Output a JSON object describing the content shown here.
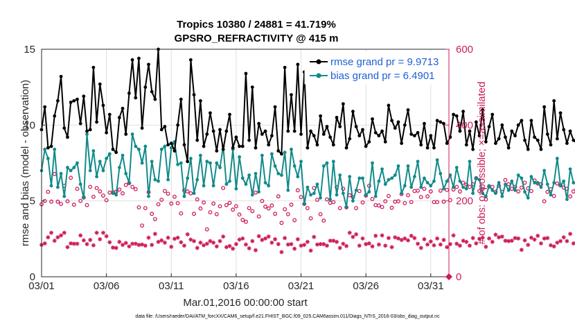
{
  "chart_data": {
    "type": "line",
    "title": "Tropics 10380 / 24881 = 41.719%",
    "subtitle": "GPSRO_REFRACTIVITY @ 415 m",
    "xlabel": "Mar.01,2016 00:00:00 start",
    "ylabel": "rmse and bias (model - observation)",
    "ylabel_right": "# of obs: o=possible; ×=assimilated",
    "footer": "data file: /Users/raeder/DAI/ATM_forcXX/CAM6_setup/f.e21.FHIST_BGC.f09_025.CAM6assim.011/Diags_NTrS_2016-03/obs_diag_output.nc",
    "xlim": [
      0,
      31.4
    ],
    "ylim": [
      0,
      15
    ],
    "ylim_right": [
      0,
      600
    ],
    "x_ticks": [
      0,
      5,
      10,
      15,
      20,
      25,
      30
    ],
    "x_tick_labels": [
      "03/01",
      "03/06",
      "03/11",
      "03/16",
      "03/21",
      "03/26",
      "03/31"
    ],
    "y_ticks": [
      0,
      5,
      10,
      15
    ],
    "y_tick_labels": [
      "0",
      "5",
      "10",
      "15"
    ],
    "y_ticks_right": [
      0,
      200,
      400,
      600
    ],
    "y_tick_labels_right": [
      "0",
      "200",
      "400",
      "600"
    ],
    "grid": true,
    "x_step_days": 0.25,
    "series": [
      {
        "name": "rmse grand pr = 9.9713",
        "color": "#000000",
        "axis": "left",
        "values": [
          9.7,
          11.2,
          8.5,
          8.6,
          10.6,
          11.6,
          13.2,
          9.8,
          9.2,
          11.5,
          11.6,
          11.7,
          10.1,
          11.9,
          9.6,
          9.7,
          13.8,
          10.2,
          12.7,
          11.3,
          9.5,
          10.7,
          8.4,
          8.2,
          10.5,
          11.1,
          9.4,
          12.1,
          14.3,
          11.8,
          14.4,
          9.8,
          12.5,
          14.0,
          12.2,
          11.7,
          15.0,
          9.7,
          9.9,
          8.7,
          8.8,
          8.3,
          10.0,
          11.7,
          8.7,
          7.6,
          14.3,
          12.0,
          9.0,
          11.6,
          8.6,
          9.4,
          10.8,
          9.6,
          8.3,
          9.7,
          8.4,
          9.6,
          10.7,
          8.5,
          9.2,
          8.6,
          8.6,
          13.4,
          9.0,
          12.5,
          8.5,
          10.1,
          9.4,
          9.6,
          8.7,
          9.3,
          11.2,
          8.3,
          8.1,
          13.8,
          9.6,
          12.0,
          9.6,
          14.0,
          9.4,
          13.5,
          8.5,
          9.6,
          9.3,
          8.7,
          10.6,
          9.4,
          9.9,
          9.2,
          8.7,
          10.5,
          9.9,
          11.4,
          8.5,
          9.1,
          10.9,
          9.9,
          9.3,
          9.7,
          8.6,
          8.9,
          10.4,
          9.5,
          9.3,
          9.6,
          8.9,
          11.3,
          10.3,
          9.8,
          10.2,
          8.8,
          10.0,
          11.0,
          9.4,
          9.3,
          9.5,
          8.7,
          10.1,
          8.5,
          9.3,
          8.5,
          10.3,
          10.2,
          10.1,
          8.8,
          9.2,
          10.7,
          10.6,
          9.6,
          10.9,
          8.7,
          9.6,
          8.4,
          10.2,
          9.3,
          11.0,
          8.9,
          9.9,
          10.7,
          8.8,
          9.1,
          10.0,
          9.2,
          8.5,
          9.6,
          9.3,
          10.0,
          10.3,
          9.0,
          8.4,
          10.3,
          9.2,
          9.0,
          8.4,
          11.2,
          9.4,
          8.7,
          11.6,
          9.1,
          10.8,
          9.7,
          8.8,
          9.6,
          9.0,
          8.8,
          8.8,
          8.8,
          10.6,
          8.5,
          10.1,
          9.2,
          8.7,
          10.7,
          9.0,
          8.8,
          10.4,
          8.5,
          9.5,
          9.8,
          9.0,
          8.6,
          11.4,
          11.0,
          8.4,
          10.7,
          9.4,
          10.0,
          10.2,
          10.7,
          8.3
        ]
      },
      {
        "name": "bias grand pr = 6.4901",
        "color": "#128a8a",
        "axis": "left",
        "values": [
          7.0,
          8.4,
          7.8,
          6.0,
          8.4,
          5.9,
          6.8,
          5.3,
          7.2,
          7.0,
          7.2,
          7.5,
          6.1,
          5.2,
          9.4,
          7.0,
          8.3,
          6.6,
          7.6,
          7.0,
          7.8,
          8.1,
          5.5,
          5.4,
          7.2,
          8.0,
          6.8,
          6.2,
          9.4,
          8.6,
          8.4,
          7.5,
          8.6,
          5.3,
          7.6,
          6.4,
          6.3,
          8.4,
          8.6,
          6.4,
          8.5,
          8.9,
          7.4,
          7.5,
          5.3,
          6.5,
          7.8,
          5.5,
          6.4,
          8.0,
          6.0,
          7.6,
          7.5,
          6.0,
          7.5,
          7.2,
          8.6,
          6.1,
          6.3,
          8.4,
          5.8,
          7.9,
          6.5,
          6.1,
          6.7,
          5.4,
          6.8,
          5.6,
          8.0,
          6.2,
          6.0,
          8.1,
          7.3,
          6.8,
          6.7,
          8.2,
          5.7,
          8.4,
          7.3,
          6.6,
          7.6,
          4.8,
          5.9,
          5.4,
          5.5,
          6.1,
          5.2,
          7.3,
          7.5,
          5.1,
          7.6,
          5.4,
          6.7,
          5.5,
          4.6,
          6.6,
          5.0,
          5.7,
          6.5,
          6.5,
          5.4,
          5.6,
          7.5,
          5.3,
          6.3,
          7.1,
          6.1,
          6.4,
          6.5,
          6.7,
          7.3,
          5.5,
          6.0,
          7.3,
          5.9,
          6.6,
          7.6,
          5.9,
          6.5,
          6.2,
          6.0,
          6.3,
          7.7,
          6.8,
          5.8,
          6.3,
          6.7,
          5.9,
          7.2,
          6.3,
          5.9,
          5.8,
          7.6,
          5.5,
          6.5,
          6.4,
          5.5,
          5.3,
          6.0,
          5.7,
          5.5,
          6.2,
          5.3,
          6.1,
          5.7,
          6.3,
          5.7,
          6.7,
          6.5,
          5.6,
          5.2,
          6.6,
          6.2,
          6.2,
          5.9,
          7.0,
          6.1,
          5.4,
          6.2,
          7.8,
          6.0,
          6.3,
          5.1,
          7.1,
          6.2,
          6.1,
          6.7,
          5.8,
          6.0,
          6.6,
          5.7,
          5.5,
          6.2,
          7.3,
          5.5,
          7.0,
          6.3,
          5.9,
          5.7,
          7.4,
          6.0,
          6.4,
          7.7,
          5.9,
          6.3,
          6.1,
          7.8,
          6.4,
          4.7,
          7.9,
          5.6,
          4.6
        ]
      },
      {
        "name": "obs possible",
        "marker": "o",
        "color": "#cc1b5c",
        "axis": "right",
        "values": [
          191,
          200,
          224,
          198,
          271,
          198,
          192,
          240,
          199,
          261,
          190,
          232,
          200,
          209,
          189,
          237,
          211,
          234,
          225,
          214,
          202,
          222,
          223,
          224,
          230,
          220,
          242,
          247,
          237,
          231,
          183,
          135,
          181,
          223,
          166,
          152,
          191,
          203,
          226,
          219,
          193,
          211,
          194,
          167,
          228,
          225,
          220,
          166,
          204,
          180,
          196,
          125,
          170,
          193,
          165,
          186,
          234,
          189,
          195,
          177,
          186,
          164,
          150,
          145,
          181,
          173,
          222,
          159,
          200,
          185,
          180,
          188,
          166,
          212,
          142,
          178,
          165,
          190,
          149,
          228,
          210,
          192,
          181,
          154,
          234,
          203,
          165,
          148,
          204,
          195,
          197,
          236,
          181,
          232,
          183,
          215,
          210,
          181,
          226,
          196,
          214,
          240,
          205,
          189,
          188,
          184,
          199,
          213,
          182,
          198,
          199,
          218,
          194,
          215,
          197,
          226,
          227,
          210,
          232,
          212,
          225,
          197,
          197,
          227,
          198,
          229,
          202,
          230,
          237,
          225,
          248,
          243,
          237,
          244,
          260,
          226,
          232,
          204,
          238,
          237,
          224,
          240,
          224,
          255,
          244,
          232,
          237,
          225,
          235,
          248,
          233,
          226,
          254,
          246,
          244,
          199,
          224,
          231,
          213,
          246,
          241,
          235,
          232,
          212,
          225,
          232,
          239,
          221,
          230,
          225,
          250,
          246,
          232,
          262,
          236,
          216,
          232,
          225,
          257,
          230,
          199,
          222,
          219,
          243,
          207,
          232,
          240,
          220,
          228,
          235,
          210,
          221,
          217,
          237,
          229,
          248
        ]
      },
      {
        "name": "obs assimilated",
        "marker": "x",
        "color": "#cc1b5c",
        "axis": "right",
        "values": [
          84,
          88,
          104,
          116,
          95,
          104,
          109,
          116,
          78,
          88,
          87,
          87,
          109,
          96,
          86,
          97,
          83,
          116,
          99,
          116,
          107,
          91,
          77,
          76,
          92,
          84,
          89,
          80,
          87,
          87,
          84,
          85,
          82,
          103,
          84,
          113,
          92,
          96,
          90,
          103,
          79,
          100,
          103,
          91,
          82,
          112,
          98,
          94,
          76,
          90,
          83,
          87,
          94,
          90,
          80,
          94,
          106,
          78,
          81,
          74,
          86,
          98,
          101,
          85,
          75,
          94,
          70,
          107,
          97,
          101,
          106,
          90,
          99,
          86,
          65,
          102,
          85,
          86,
          74,
          99,
          82,
          84,
          92,
          69,
          105,
          85,
          86,
          86,
          82,
          95,
          95,
          92,
          76,
          87,
          81,
          116,
          105,
          112,
          82,
          101,
          86,
          88,
          80,
          108,
          85,
          109,
          82,
          102,
          78,
          104,
          101,
          97,
          101,
          96,
          108,
          102,
          87,
          76,
          99,
          85,
          93,
          83,
          101,
          85,
          97,
          78,
          86,
          109,
          87,
          82,
          95,
          92,
          82,
          102,
          88,
          100,
          103,
          79,
          101,
          92,
          111,
          104,
          106,
          95,
          94,
          95,
          102,
          101,
          71,
          96,
          84,
          103,
          98,
          108,
          88,
          101,
          102,
          83,
          80,
          90,
          94,
          104,
          94,
          113,
          88,
          91,
          79,
          103,
          106,
          85,
          108,
          86,
          102,
          100,
          103,
          103,
          113,
          94,
          89,
          80,
          110,
          104,
          107,
          87,
          89,
          93,
          76,
          115,
          111,
          94,
          96,
          88,
          104,
          122,
          117,
          113
        ]
      }
    ]
  }
}
